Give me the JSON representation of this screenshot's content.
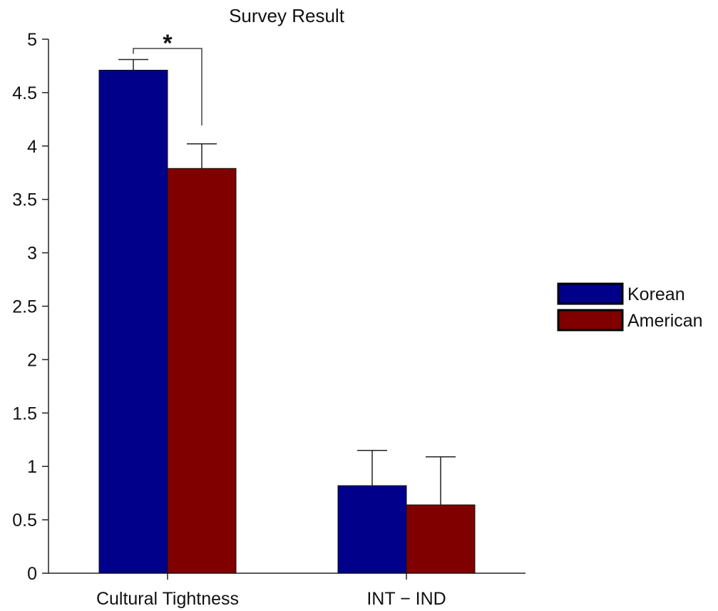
{
  "chart_data": {
    "type": "bar",
    "title": "Survey Result",
    "xlabel": "",
    "ylabel": "",
    "categories": [
      "Cultural Tightness",
      "INT − IND"
    ],
    "series": [
      {
        "name": "Korean",
        "values": [
          4.71,
          0.82
        ],
        "error": [
          0.1,
          0.33
        ],
        "color": "#00008b"
      },
      {
        "name": "American",
        "values": [
          3.79,
          0.64
        ],
        "error": [
          0.23,
          0.45
        ],
        "color": "#800000"
      }
    ],
    "ylim": [
      0,
      5
    ],
    "yticks": [
      "0",
      "0.5",
      "1",
      "1.5",
      "2",
      "2.5",
      "3",
      "3.5",
      "4",
      "4.5",
      "5"
    ],
    "grid": false,
    "legend_position": "right",
    "annotations": [
      {
        "text": "*",
        "category": "Cultural Tightness",
        "type": "significance-bracket"
      }
    ]
  }
}
